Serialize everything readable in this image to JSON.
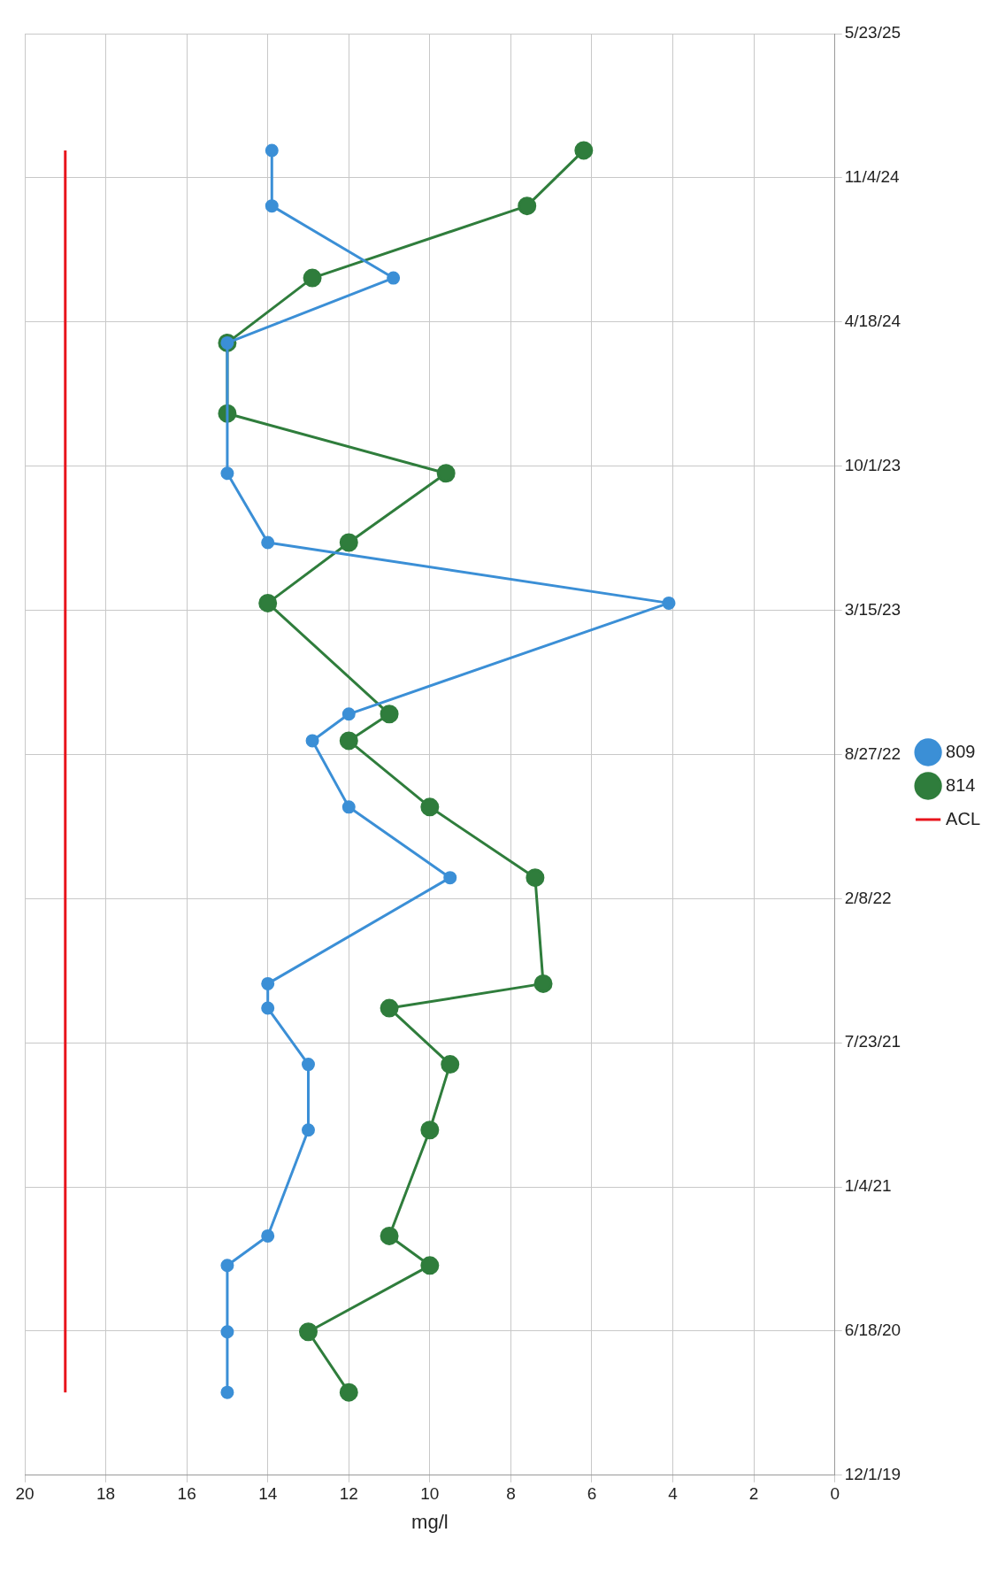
{
  "chart_data": {
    "type": "line",
    "orientation": "horizontal",
    "xlabel": "mg/l",
    "ylim": [
      "2019-12-01",
      "2025-05-23"
    ],
    "yticks": [
      {
        "value": "2019-12-01",
        "label": "12/1/19"
      },
      {
        "value": "2020-06-18",
        "label": "6/18/20"
      },
      {
        "value": "2021-01-04",
        "label": "1/4/21"
      },
      {
        "value": "2021-07-23",
        "label": "7/23/21"
      },
      {
        "value": "2022-02-08",
        "label": "2/8/22"
      },
      {
        "value": "2022-08-27",
        "label": "8/27/22"
      },
      {
        "value": "2023-03-15",
        "label": "3/15/23"
      },
      {
        "value": "2023-10-01",
        "label": "10/1/23"
      },
      {
        "value": "2024-04-18",
        "label": "4/18/24"
      },
      {
        "value": "2024-11-04",
        "label": "11/4/24"
      },
      {
        "value": "2025-05-23",
        "label": "5/23/25"
      }
    ],
    "xlim": [
      20,
      0
    ],
    "xticks": [
      20,
      18,
      16,
      14,
      12,
      10,
      8,
      6,
      4,
      2,
      0
    ],
    "grid": true,
    "legend": "right",
    "marker": "circle",
    "line_style": "solid",
    "series": [
      {
        "name": "809",
        "color": "#3b8fd6",
        "x": [
          "2020-03-25",
          "2020-06-17",
          "2020-09-17",
          "2020-10-28",
          "2021-03-24",
          "2021-06-23",
          "2021-09-09",
          "2021-10-13",
          "2022-03-09",
          "2022-06-15",
          "2022-09-15",
          "2022-10-22",
          "2023-03-25",
          "2023-06-17",
          "2023-09-21",
          "2024-03-20",
          "2024-06-18",
          "2024-09-26",
          "2024-12-12"
        ],
        "values": [
          15,
          15,
          15,
          14,
          13,
          13,
          14,
          14,
          9.5,
          12,
          12.9,
          12,
          4.1,
          14,
          15,
          15,
          10.9,
          13.9,
          13.9
        ]
      },
      {
        "name": "814",
        "color": "#2f7d3c",
        "x": [
          "2020-03-25",
          "2020-06-17",
          "2020-09-17",
          "2020-10-28",
          "2021-03-24",
          "2021-06-23",
          "2021-09-09",
          "2021-10-13",
          "2022-03-09",
          "2022-06-15",
          "2022-09-15",
          "2022-10-22",
          "2023-03-25",
          "2023-06-17",
          "2023-09-21",
          "2023-12-13",
          "2024-03-20",
          "2024-06-18",
          "2024-09-26",
          "2024-12-12"
        ],
        "values": [
          12,
          13,
          10,
          11,
          10,
          9.5,
          11,
          7.2,
          7.4,
          10,
          12,
          11,
          14,
          12,
          9.6,
          15,
          15,
          12.9,
          7.6,
          6.2
        ]
      },
      {
        "name": "ACL",
        "color": "#e8141c",
        "marker": "none",
        "x": [
          "2020-03-25",
          "2024-12-12"
        ],
        "values": [
          19,
          19
        ]
      }
    ]
  }
}
